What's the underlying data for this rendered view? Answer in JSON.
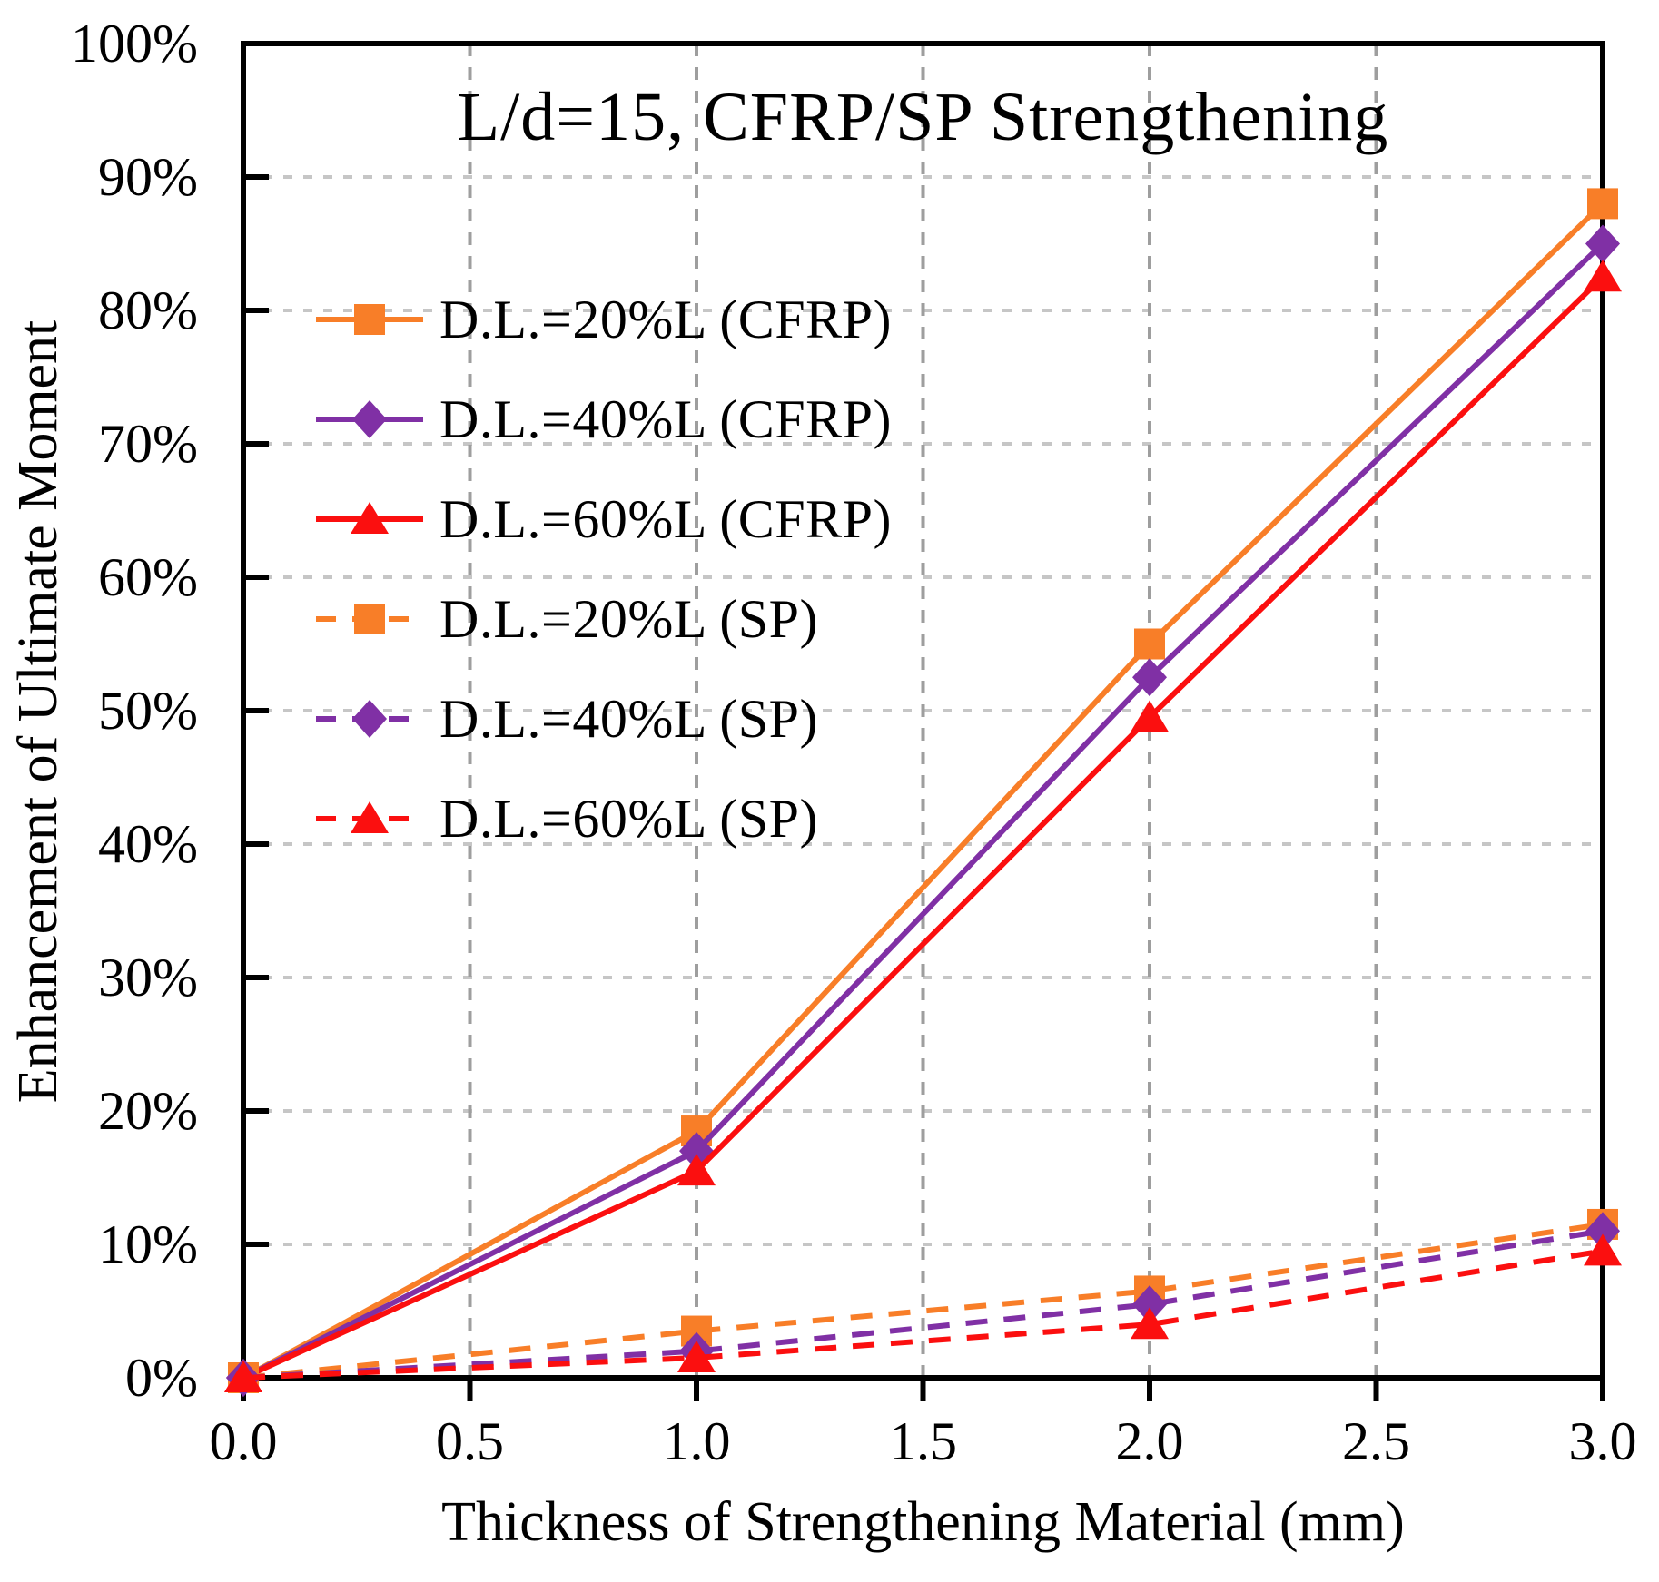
{
  "chart_data": {
    "type": "line",
    "title": "L/d=15, CFRP/SP Strengthening",
    "xlabel": "Thickness of Strengthening Material (mm)",
    "ylabel": "Enhancement of Ultimate Moment",
    "x": [
      0.0,
      1.0,
      2.0,
      3.0
    ],
    "xlim": [
      0.0,
      3.0
    ],
    "ylim": [
      0,
      100
    ],
    "y_unit": "percent",
    "grid": true,
    "legend_position": "upper-left-inside",
    "x_tick_values": [
      0.0,
      0.5,
      1.0,
      1.5,
      2.0,
      2.5,
      3.0
    ],
    "x_tick_labels": [
      "0.0",
      "0.5",
      "1.0",
      "1.5",
      "2.0",
      "2.5",
      "3.0"
    ],
    "y_tick_values": [
      0,
      10,
      20,
      30,
      40,
      50,
      60,
      70,
      80,
      90,
      100
    ],
    "y_tick_labels": [
      "0%",
      "10%",
      "20%",
      "30%",
      "40%",
      "50%",
      "60%",
      "70%",
      "80%",
      "90%",
      "100%"
    ],
    "series": [
      {
        "name": "D.L.=20%L (CFRP)",
        "values": [
          0,
          18.5,
          55,
          88
        ],
        "color": "#F87E28",
        "marker": "square",
        "line_style": "solid"
      },
      {
        "name": "D.L.=40%L (CFRP)",
        "values": [
          0,
          17,
          52.5,
          85
        ],
        "color": "#8030A5",
        "marker": "diamond",
        "line_style": "solid"
      },
      {
        "name": "D.L.=60%L (CFRP)",
        "values": [
          0,
          15.5,
          49.5,
          82.5
        ],
        "color": "#FB0F0F",
        "marker": "triangle",
        "line_style": "solid"
      },
      {
        "name": "D.L.=20%L (SP)",
        "values": [
          0,
          3.5,
          6.5,
          11.5
        ],
        "color": "#F87E28",
        "marker": "square",
        "line_style": "dashed"
      },
      {
        "name": "D.L.=40%L (SP)",
        "values": [
          0,
          2,
          5.5,
          11
        ],
        "color": "#8030A5",
        "marker": "diamond",
        "line_style": "dashed"
      },
      {
        "name": "D.L.=60%L (SP)",
        "values": [
          0,
          1.5,
          4,
          9.5
        ],
        "color": "#FB0F0F",
        "marker": "triangle",
        "line_style": "dashed"
      }
    ],
    "style_colors": {
      "axis_and_border": "#000000",
      "horizontal_gridline": "#c6c6c6",
      "vertical_gridline": "#9e9e9e",
      "background": "#ffffff"
    }
  }
}
